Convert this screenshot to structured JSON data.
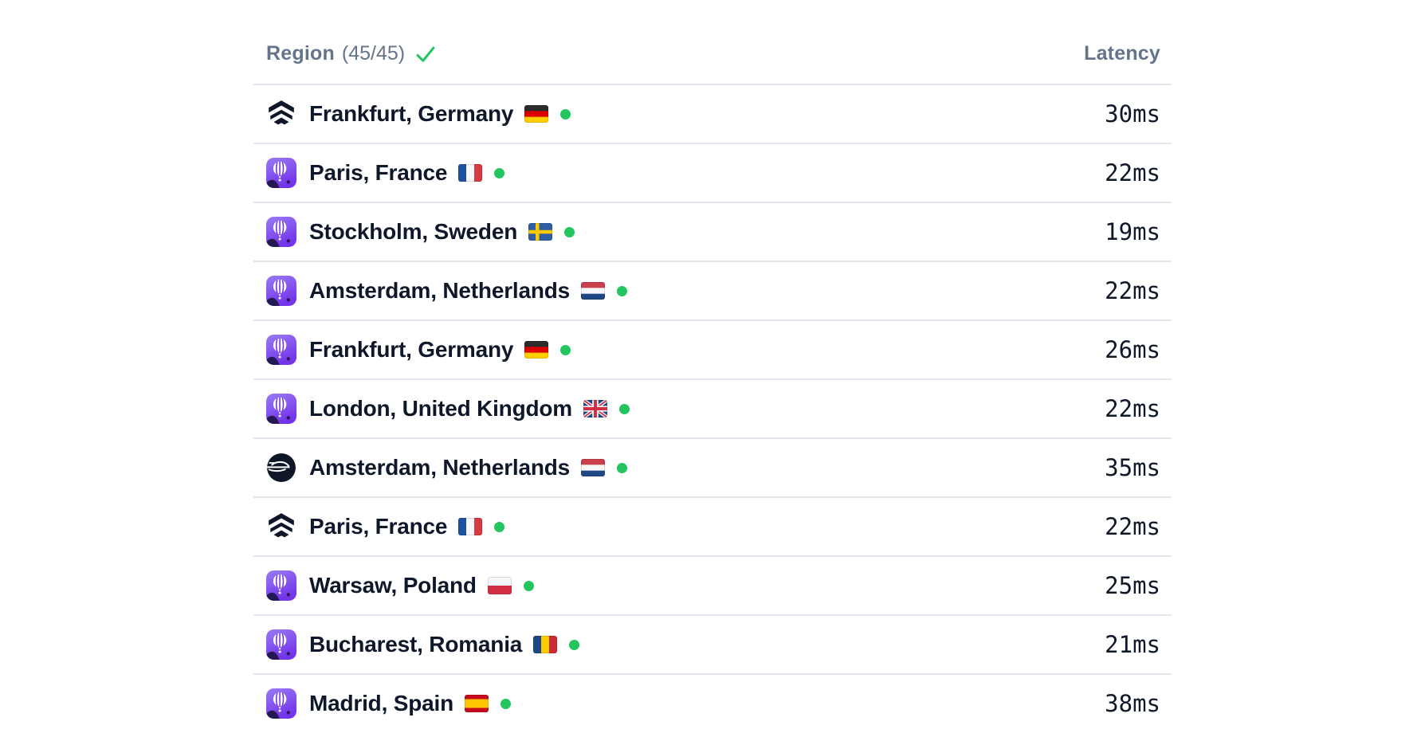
{
  "header": {
    "region_label": "Region",
    "region_count": "(45/45)",
    "check_icon": "green-checkmark",
    "latency_label": "Latency"
  },
  "colors": {
    "background": "#ffffff",
    "divider": "#e2e8f0",
    "header_text": "#64748b",
    "row_text": "#0f172a",
    "status_green": "#22c55e",
    "provider_dark": "#0e1628",
    "fly_purple_light": "#9a7cf4",
    "fly_purple_dark": "#7434ea",
    "fly_navy": "#241a53"
  },
  "rows": [
    {
      "provider": "koyeb",
      "region": "Frankfurt, Germany",
      "flag": "germany",
      "status": "ok",
      "latency": "30ms"
    },
    {
      "provider": "fly",
      "region": "Paris, France",
      "flag": "france",
      "status": "ok",
      "latency": "22ms"
    },
    {
      "provider": "fly",
      "region": "Stockholm, Sweden",
      "flag": "sweden",
      "status": "ok",
      "latency": "19ms"
    },
    {
      "provider": "fly",
      "region": "Amsterdam, Netherlands",
      "flag": "netherlands",
      "status": "ok",
      "latency": "22ms"
    },
    {
      "provider": "fly",
      "region": "Frankfurt, Germany",
      "flag": "germany",
      "status": "ok",
      "latency": "26ms"
    },
    {
      "provider": "fly",
      "region": "London, United Kingdom",
      "flag": "uk",
      "status": "ok",
      "latency": "22ms"
    },
    {
      "provider": "railway",
      "region": "Amsterdam, Netherlands",
      "flag": "netherlands",
      "status": "ok",
      "latency": "35ms"
    },
    {
      "provider": "koyeb",
      "region": "Paris, France",
      "flag": "france",
      "status": "ok",
      "latency": "22ms"
    },
    {
      "provider": "fly",
      "region": "Warsaw, Poland",
      "flag": "poland",
      "status": "ok",
      "latency": "25ms"
    },
    {
      "provider": "fly",
      "region": "Bucharest, Romania",
      "flag": "romania",
      "status": "ok",
      "latency": "21ms"
    },
    {
      "provider": "fly",
      "region": "Madrid, Spain",
      "flag": "spain",
      "status": "ok",
      "latency": "38ms"
    }
  ],
  "flags": {
    "germany": {
      "type": "h",
      "stripes": [
        "#2b2b2b",
        "#dd0000",
        "#ffce00"
      ]
    },
    "france": {
      "type": "v",
      "stripes": [
        "#1e50a0",
        "#f5f7f8",
        "#d83a41"
      ]
    },
    "sweden": {
      "type": "nordic",
      "bg": "#2e5fa3",
      "cross": "#fecb00"
    },
    "netherlands": {
      "type": "h",
      "stripes": [
        "#c8414b",
        "#f5f7f8",
        "#1e4785"
      ]
    },
    "uk": {
      "type": "uk",
      "bg": "#1e4785",
      "white": "#f5f7f8",
      "red": "#d22f44"
    },
    "poland": {
      "type": "h",
      "stripes": [
        "#f5f7f8",
        "#d22f44"
      ]
    },
    "romania": {
      "type": "v",
      "stripes": [
        "#1e4785",
        "#fecb00",
        "#ce2939"
      ]
    },
    "spain": {
      "type": "h",
      "stripes": [
        "#c60b1e",
        "#ffc400",
        "#c60b1e"
      ],
      "weights": [
        1,
        2,
        1
      ]
    }
  }
}
